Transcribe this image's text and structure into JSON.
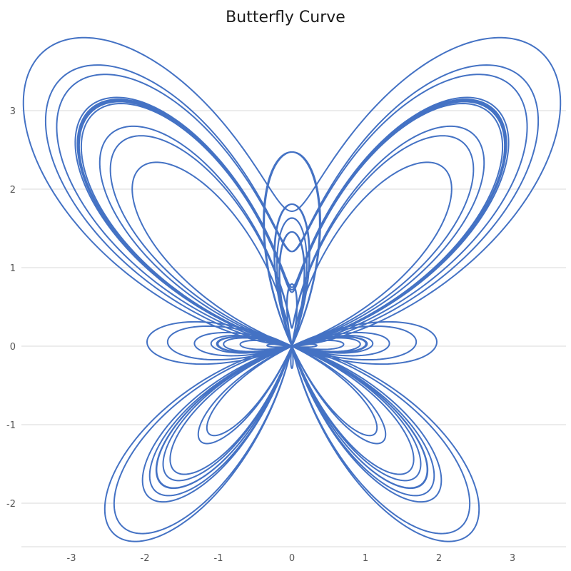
{
  "chart_data": {
    "type": "line",
    "title": "Butterfly Curve",
    "xlabel": "",
    "ylabel": "",
    "xlim": [
      -3.65,
      3.75
    ],
    "ylim": [
      -2.7,
      4.0
    ],
    "x_ticks": [
      -3,
      -2,
      -1,
      0,
      1,
      2,
      3
    ],
    "y_ticks": [
      3,
      2,
      1,
      0,
      -1,
      -2
    ],
    "grid": {
      "horizontal": true,
      "vertical": false
    },
    "legend": "none",
    "series": [
      {
        "equation": {
          "x": "sin(t) * (e^cos(t) - 2cos(4t) - sin^5(t/12))",
          "y": "cos(t) * (e^cos(t) - 2cos(4t) - sin^5(t/12))"
        },
        "t_range": [
          0,
          75.398
        ],
        "color": "#4472c4"
      }
    ]
  }
}
